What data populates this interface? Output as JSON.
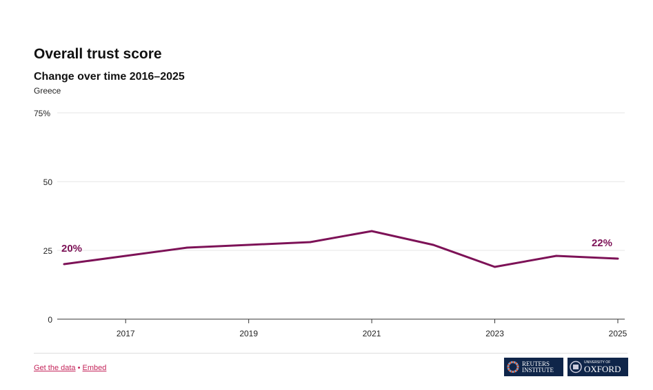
{
  "header": {
    "title": "Overall trust score",
    "subtitle": "Change over time 2016–2025",
    "region": "Greece"
  },
  "chart_data": {
    "type": "line",
    "title": "Overall trust score",
    "subtitle": "Change over time 2016–2025",
    "x": [
      2016,
      2017,
      2018,
      2019,
      2020,
      2021,
      2022,
      2023,
      2024,
      2025
    ],
    "series": [
      {
        "name": "Greece",
        "values": [
          20,
          23,
          26,
          27,
          28,
          32,
          27,
          19,
          23,
          22
        ],
        "color": "#7d1257"
      }
    ],
    "x_ticks": [
      "2017",
      "2019",
      "2021",
      "2023",
      "2025"
    ],
    "y_ticks": [
      "0",
      "25",
      "50",
      "75%"
    ],
    "ylim": [
      0,
      75
    ],
    "xlim": [
      2016,
      2025
    ],
    "annotations": [
      {
        "x": 2016,
        "label": "20%"
      },
      {
        "x": 2025,
        "label": "22%"
      }
    ],
    "grid": true
  },
  "footer": {
    "get_data": "Get the data",
    "separator": "•",
    "embed": "Embed",
    "logos": {
      "reuters": [
        "REUTERS",
        "INSTITUTE"
      ],
      "oxford": [
        "UNIVERSITY OF",
        "OXFORD"
      ]
    }
  }
}
